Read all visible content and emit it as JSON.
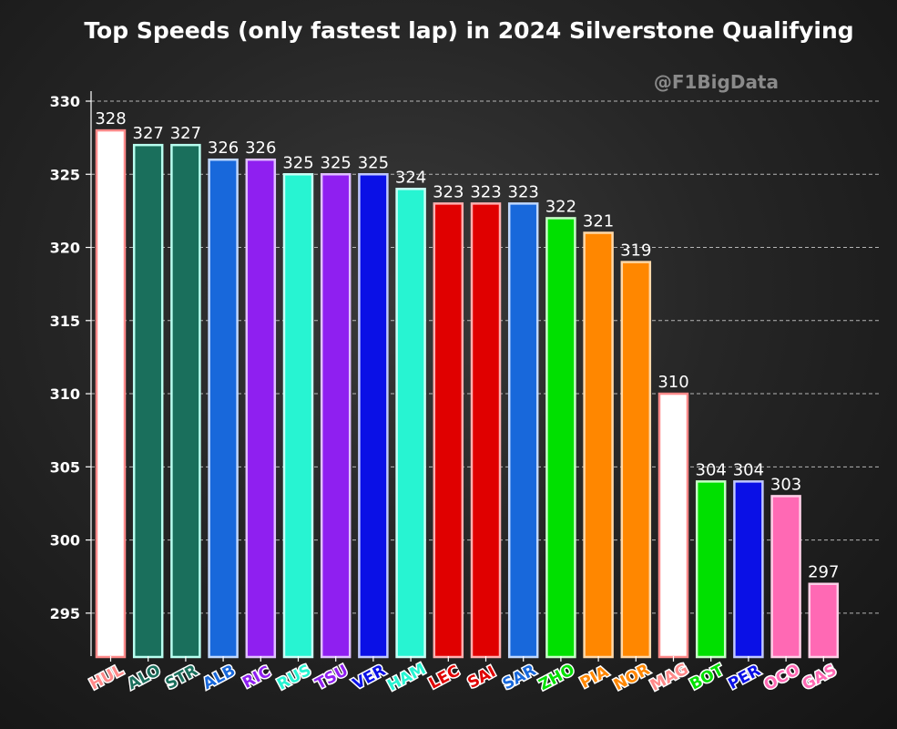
{
  "header": {
    "title": "Top Speeds (only fastest lap) in 2024 Silverstone Qualifying",
    "watermark": "@F1BigData"
  },
  "chart_data": {
    "type": "bar",
    "title": "Top Speeds (only fastest lap) in 2024 Silverstone Qualifying",
    "xlabel": "",
    "ylabel": "",
    "ylim": [
      292,
      330.8
    ],
    "yticks": [
      295,
      300,
      305,
      310,
      315,
      320,
      325,
      330
    ],
    "grid": true,
    "categories": [
      "HUL",
      "ALO",
      "STR",
      "ALB",
      "RIC",
      "RUS",
      "TSU",
      "VER",
      "HAM",
      "LEC",
      "SAI",
      "SAR",
      "ZHO",
      "PIA",
      "NOR",
      "MAG",
      "BOT",
      "PER",
      "OCO",
      "GAS"
    ],
    "values": [
      328,
      327,
      327,
      326,
      326,
      325,
      325,
      325,
      324,
      323,
      323,
      323,
      322,
      321,
      319,
      310,
      304,
      304,
      303,
      297
    ],
    "bar_colors": [
      "#ffffff",
      "#1a6f5c",
      "#1a6f5c",
      "#1868db",
      "#8f1ff0",
      "#27f4d2",
      "#8f1ff0",
      "#0a10e6",
      "#27f4d2",
      "#e00000",
      "#e00000",
      "#1868db",
      "#00e000",
      "#ff8700",
      "#ff8700",
      "#ffffff",
      "#00e000",
      "#0a10e6",
      "#ff69b4",
      "#ff69b4"
    ],
    "bar_edge_colors": [
      "#ff8a8a",
      "#b8fff0",
      "#b8fff0",
      "#c0d8ff",
      "#e0c0ff",
      "#c8fff6",
      "#e0c0ff",
      "#c0c8ff",
      "#c8fff6",
      "#ffb0b0",
      "#ffb0b0",
      "#c0d8ff",
      "#c8ffc8",
      "#ffd8a8",
      "#ffd8a8",
      "#ff8a8a",
      "#c8ffc8",
      "#c0c8ff",
      "#ffd0e8",
      "#ffd0e8"
    ],
    "label_colors": [
      "#ff8a8a",
      "#1a6f5c",
      "#1a6f5c",
      "#1868db",
      "#8f1ff0",
      "#27f4d2",
      "#8f1ff0",
      "#0a10e6",
      "#27f4d2",
      "#e00000",
      "#e00000",
      "#1868db",
      "#00e000",
      "#ff8700",
      "#ff8700",
      "#ff8a8a",
      "#00e000",
      "#0a10e6",
      "#ff69b4",
      "#ff69b4"
    ]
  }
}
